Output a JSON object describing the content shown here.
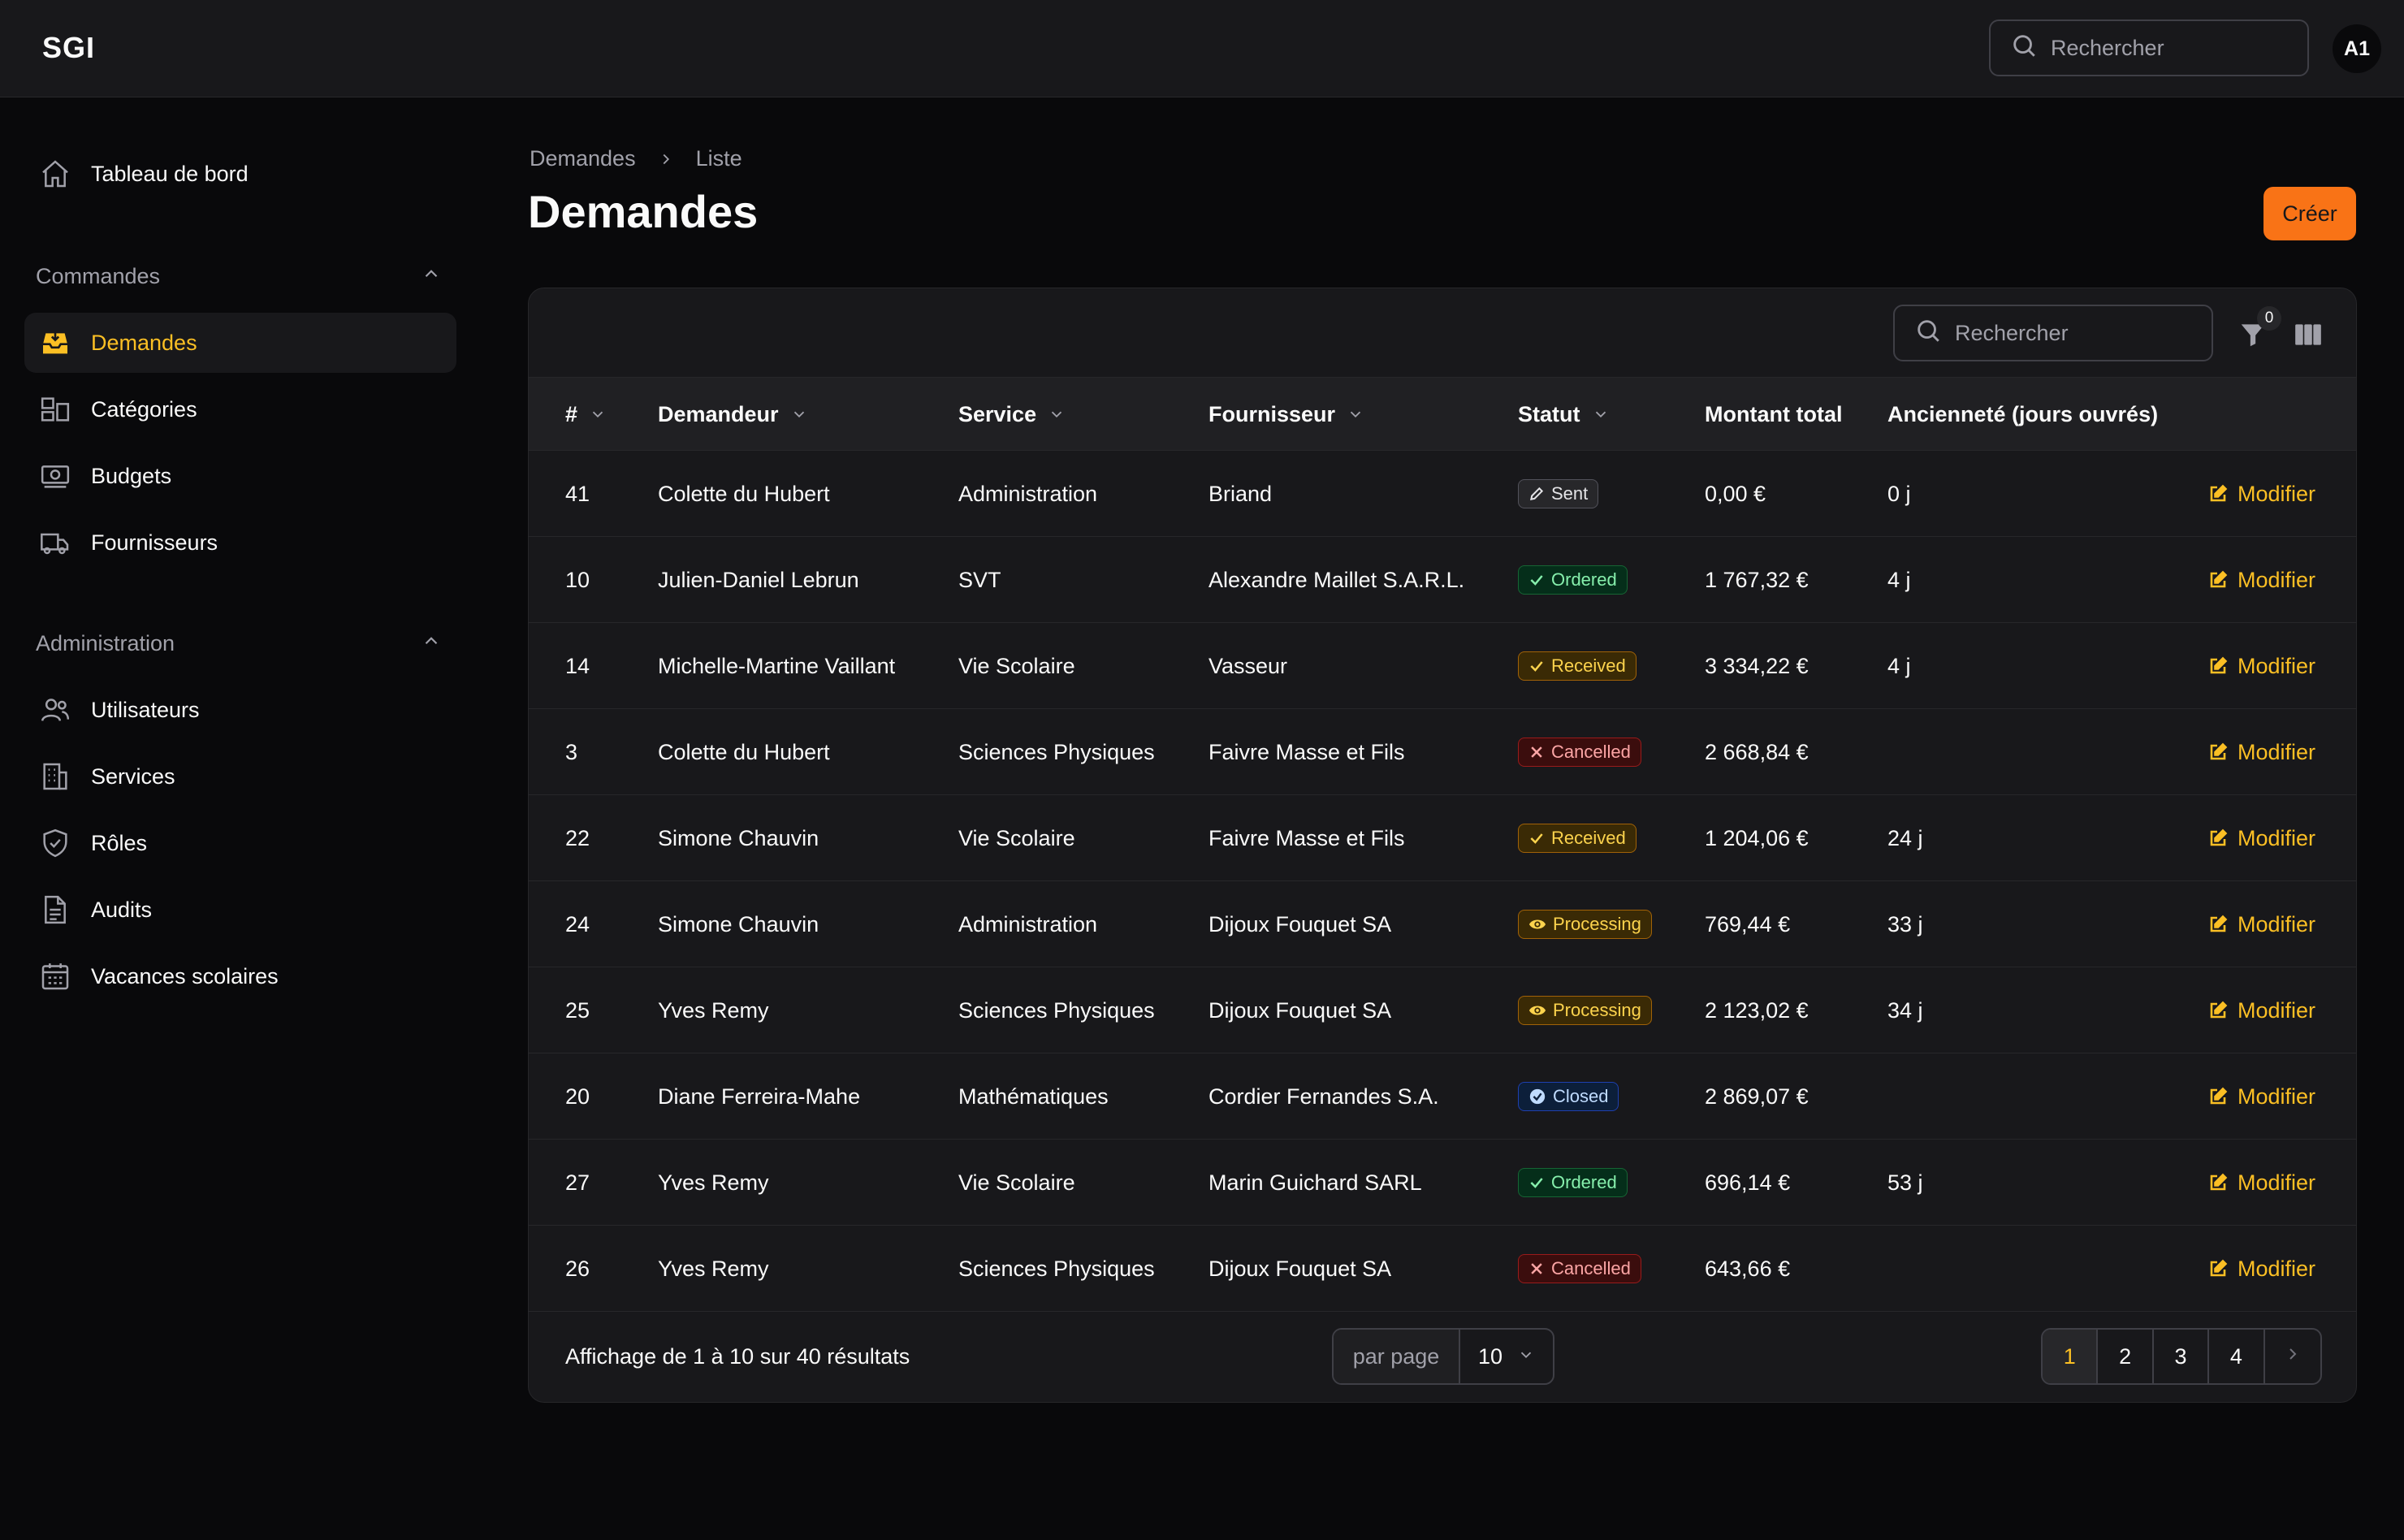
{
  "app": {
    "brand": "SGI",
    "avatar_initials": "A1"
  },
  "header": {
    "search_placeholder": "Rechercher"
  },
  "sidebar": {
    "top_item": {
      "label": "Tableau de bord",
      "icon": "home-icon"
    },
    "groups": [
      {
        "label": "Commandes",
        "items": [
          {
            "label": "Demandes",
            "icon": "inbox-icon",
            "active": true
          },
          {
            "label": "Catégories",
            "icon": "categories-icon"
          },
          {
            "label": "Budgets",
            "icon": "banknote-icon"
          },
          {
            "label": "Fournisseurs",
            "icon": "truck-icon"
          }
        ]
      },
      {
        "label": "Administration",
        "items": [
          {
            "label": "Utilisateurs",
            "icon": "users-icon"
          },
          {
            "label": "Services",
            "icon": "building-icon"
          },
          {
            "label": "Rôles",
            "icon": "shield-check-icon"
          },
          {
            "label": "Audits",
            "icon": "document-icon"
          },
          {
            "label": "Vacances scolaires",
            "icon": "calendar-icon"
          }
        ]
      }
    ]
  },
  "breadcrumb": {
    "parent": "Demandes",
    "current": "Liste"
  },
  "page": {
    "title": "Demandes",
    "create_label": "Créer"
  },
  "table": {
    "search_placeholder": "Rechercher",
    "filter_count": "0",
    "columns": {
      "id": "#",
      "requester": "Demandeur",
      "service": "Service",
      "supplier": "Fournisseur",
      "status": "Statut",
      "total": "Montant total",
      "age": "Ancienneté (jours ouvrés)"
    },
    "edit_label": "Modifier",
    "rows": [
      {
        "id": "41",
        "requester": "Colette du Hubert",
        "service": "Administration",
        "supplier": "Briand",
        "status": "Sent",
        "total": "0,00 €",
        "age": "0 j"
      },
      {
        "id": "10",
        "requester": "Julien-Daniel Lebrun",
        "service": "SVT",
        "supplier": "Alexandre Maillet S.A.R.L.",
        "status": "Ordered",
        "total": "1 767,32 €",
        "age": "4 j"
      },
      {
        "id": "14",
        "requester": "Michelle-Martine Vaillant",
        "service": "Vie Scolaire",
        "supplier": "Vasseur",
        "status": "Received",
        "total": "3 334,22 €",
        "age": "4 j"
      },
      {
        "id": "3",
        "requester": "Colette du Hubert",
        "service": "Sciences Physiques",
        "supplier": "Faivre Masse et Fils",
        "status": "Cancelled",
        "total": "2 668,84 €",
        "age": ""
      },
      {
        "id": "22",
        "requester": "Simone Chauvin",
        "service": "Vie Scolaire",
        "supplier": "Faivre Masse et Fils",
        "status": "Received",
        "total": "1 204,06 €",
        "age": "24 j"
      },
      {
        "id": "24",
        "requester": "Simone Chauvin",
        "service": "Administration",
        "supplier": "Dijoux Fouquet SA",
        "status": "Processing",
        "total": "769,44 €",
        "age": "33 j"
      },
      {
        "id": "25",
        "requester": "Yves Remy",
        "service": "Sciences Physiques",
        "supplier": "Dijoux Fouquet SA",
        "status": "Processing",
        "total": "2 123,02 €",
        "age": "34 j"
      },
      {
        "id": "20",
        "requester": "Diane Ferreira-Mahe",
        "service": "Mathématiques",
        "supplier": "Cordier Fernandes S.A.",
        "status": "Closed",
        "total": "2 869,07 €",
        "age": ""
      },
      {
        "id": "27",
        "requester": "Yves Remy",
        "service": "Vie Scolaire",
        "supplier": "Marin Guichard SARL",
        "status": "Ordered",
        "total": "696,14 €",
        "age": "53 j"
      },
      {
        "id": "26",
        "requester": "Yves Remy",
        "service": "Sciences Physiques",
        "supplier": "Dijoux Fouquet SA",
        "status": "Cancelled",
        "total": "643,66 €",
        "age": ""
      }
    ]
  },
  "footer": {
    "results_text": "Affichage de 1 à 10 sur 40 résultats",
    "per_page_label": "par page",
    "per_page_value": "10",
    "pages": [
      "1",
      "2",
      "3",
      "4"
    ],
    "current_page": "1"
  },
  "colors": {
    "accent": "#fbbf24",
    "primary_button": "#f97316",
    "background": "#09090b",
    "surface": "#18181b"
  }
}
